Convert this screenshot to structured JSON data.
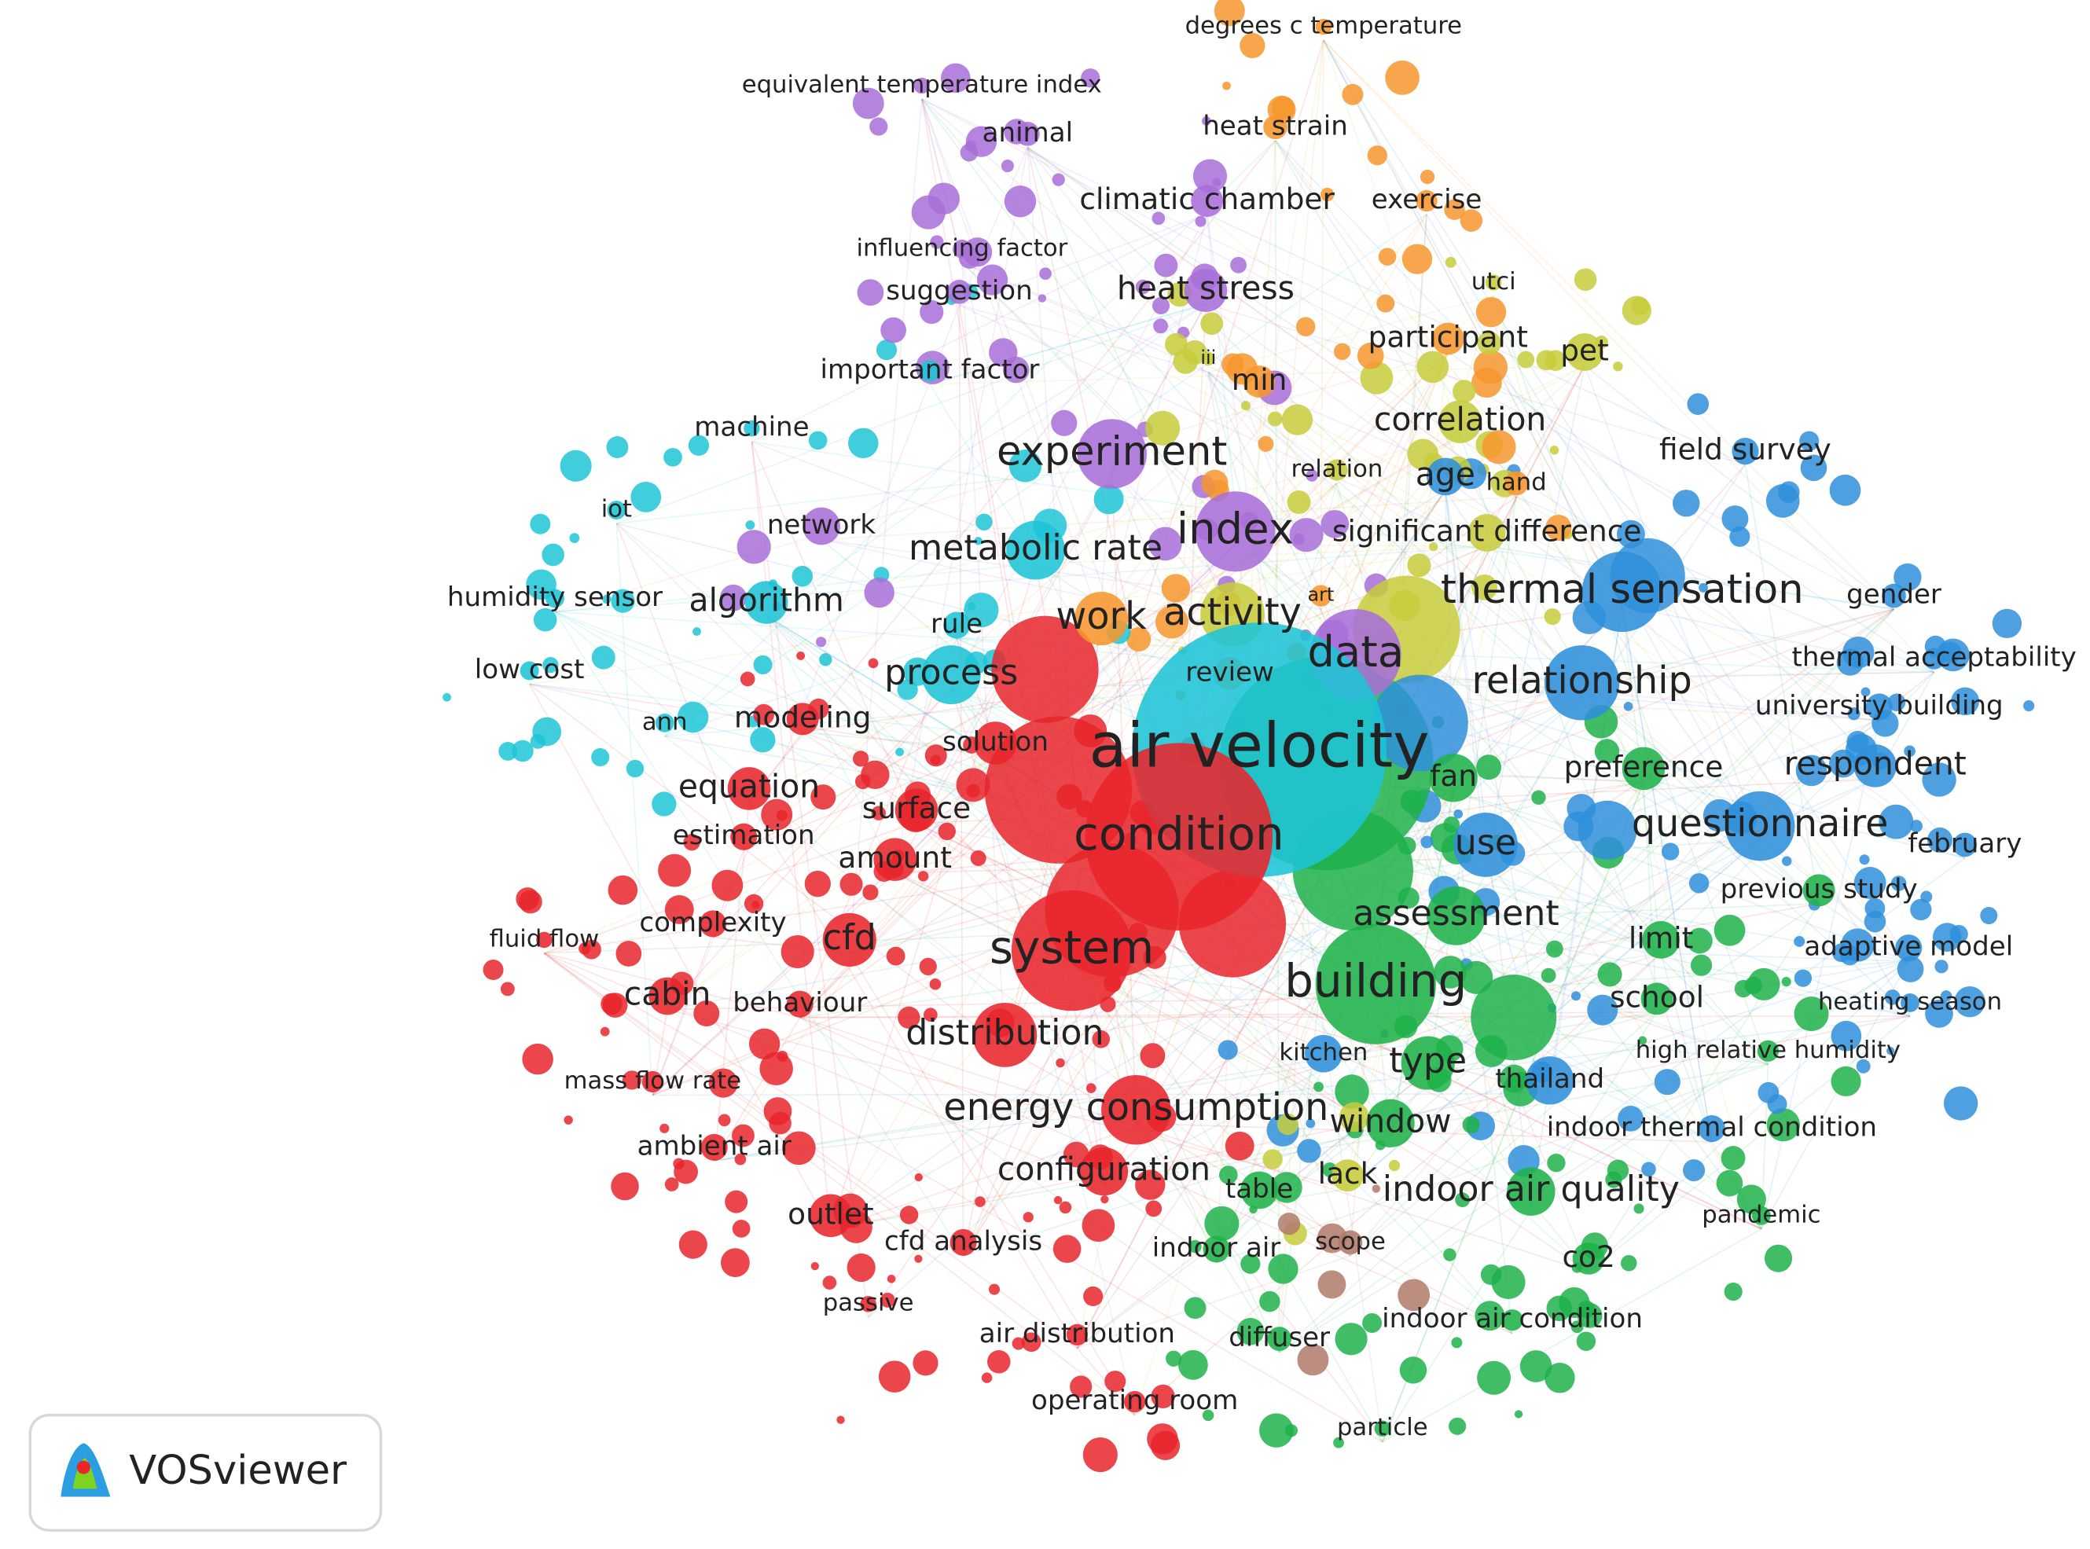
{
  "nodes": [
    "degrees c temperature",
    "equivalent temperature index",
    "animal",
    "heat strain",
    "climatic chamber",
    "exercise",
    "influencing factor",
    "suggestion",
    "heat stress",
    "utci",
    "participant",
    "pet",
    "iii",
    "min",
    "important factor",
    "machine",
    "correlation",
    "field survey",
    "experiment",
    "relation",
    "age",
    "hand",
    "iot",
    "network",
    "index",
    "metabolic rate",
    "significant difference",
    "humidity sensor",
    "algorithm",
    "thermal sensation",
    "gender",
    "art",
    "work",
    "activity",
    "rule",
    "low cost",
    "thermal acceptability",
    "data",
    "process",
    "review",
    "relationship",
    "university building",
    "ann",
    "modeling",
    "solution",
    "air velocity",
    "fan",
    "preference",
    "respondent",
    "equation",
    "surface",
    "questionnaire",
    "estimation",
    "condition",
    "use",
    "february",
    "amount",
    "previous study",
    "assessment",
    "complexity",
    "fluid flow",
    "cfd",
    "limit",
    "system",
    "adaptive model",
    "building",
    "cabin",
    "behaviour",
    "school",
    "heating season",
    "distribution",
    "high relative humidity",
    "kitchen",
    "type",
    "mass flow rate",
    "thailand",
    "energy consumption",
    "window",
    "indoor thermal condition",
    "ambient air",
    "configuration",
    "lack",
    "indoor air quality",
    "table",
    "outlet",
    "pandemic",
    "cfd analysis",
    "indoor air",
    "scope",
    "co2",
    "passive",
    "indoor air condition",
    "air distribution",
    "diffuser",
    "operating room",
    "particle"
  ],
  "logo": {
    "text": "VOSviewer"
  }
}
